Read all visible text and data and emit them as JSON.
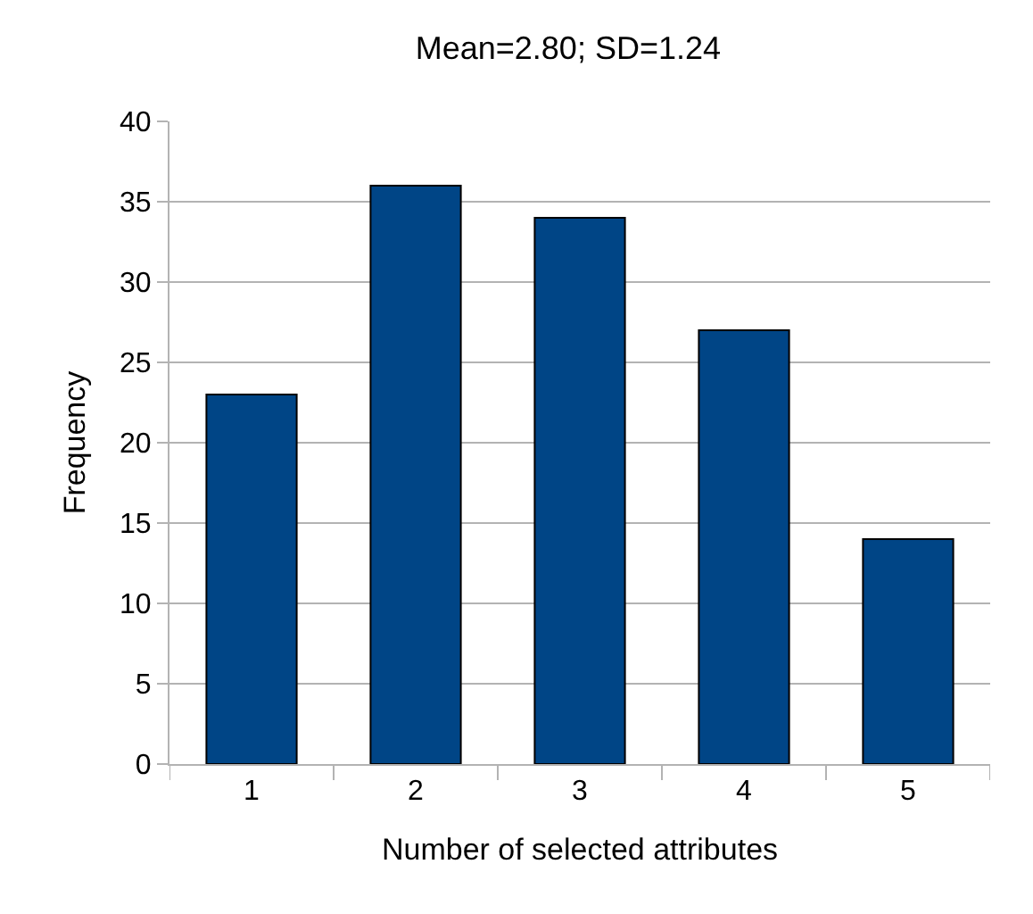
{
  "chart_data": {
    "type": "bar",
    "title": "Mean=2.80; SD=1.24",
    "xlabel": "Number of selected attributes",
    "ylabel": "Frequency",
    "categories": [
      "1",
      "2",
      "3",
      "4",
      "5"
    ],
    "values": [
      23,
      36,
      34,
      27,
      14
    ],
    "color": "#004586",
    "ylim": [
      0,
      40
    ],
    "yticks": [
      0,
      5,
      10,
      15,
      20,
      25,
      30,
      35,
      40
    ],
    "grid": "y",
    "legend": false
  }
}
